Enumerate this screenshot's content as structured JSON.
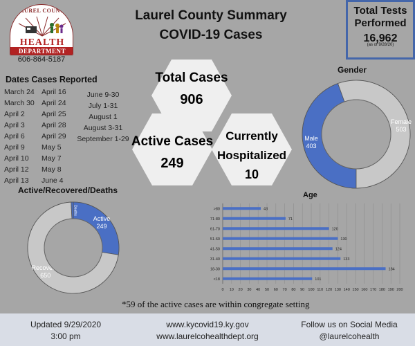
{
  "logo": {
    "arc_text": "LAUREL COUNTY",
    "line1": "HEALTH",
    "line2": "DEPARTMENT"
  },
  "phone": "606-864-5187",
  "title": {
    "line1": "Laurel County Summary",
    "line2": "COVID-19 Cases"
  },
  "total_tests": {
    "line1": "Total Tests",
    "line2": "Performed",
    "value": "16,962",
    "as_of": "(as of 9/28/20)"
  },
  "dates": {
    "title": "Dates Cases Reported",
    "col1": [
      "March 24",
      "March 30",
      "April 2",
      "April 3",
      "April 6",
      "April 9",
      "April 10",
      "April 12",
      "April 13"
    ],
    "col2": [
      "April 16",
      "April 24",
      "April 25",
      "April 28",
      "April 29",
      "May 5",
      "May 7",
      "May 8",
      "June 4"
    ],
    "col3": [
      "June 9-30",
      "July 1-31",
      "August 1",
      "August 3-31",
      "September 1-29"
    ]
  },
  "hexagons": {
    "total": {
      "line1": "Total Cases",
      "line2": "906"
    },
    "active": {
      "line1": "Active Cases",
      "line2": "249"
    },
    "hosp": {
      "line1": "Currently",
      "line2": "Hospitalized",
      "line3": "10"
    }
  },
  "colors": {
    "blue": "#4a6fc4",
    "ring_gray": "#c8c8c8",
    "hex_fill": "#efefef"
  },
  "note": "*59 of the active cases are within congregate setting",
  "footer": {
    "updated": "Updated 9/29/2020",
    "time": "3:00 pm",
    "url1": "www.kycovid19.ky.gov",
    "url2": "www.laurelcohealthdept.org",
    "social1": "Follow us on Social Media",
    "social2": "@laurelcohealth"
  },
  "chart_data": [
    {
      "type": "pie",
      "title": "Gender",
      "donut": true,
      "slices": [
        {
          "label": "Male",
          "value": 403,
          "color": "#4a6fc4"
        },
        {
          "label": "Female",
          "value": 503,
          "color": "#c8c8c8"
        }
      ]
    },
    {
      "type": "pie",
      "title": "Active/Recovered/Deaths",
      "donut": true,
      "slices": [
        {
          "label": "Active",
          "value": 249,
          "color": "#4a6fc4"
        },
        {
          "label": "Recovered",
          "display_label": "Recover...",
          "value": 650,
          "color": "#c8c8c8"
        },
        {
          "label": "Deaths",
          "display_label": "Deaths",
          "value": 7,
          "color": "#4a6fc4"
        }
      ]
    },
    {
      "type": "bar",
      "orientation": "horizontal",
      "title": "Age",
      "categories": [
        "<18",
        "18-30",
        "31-40",
        "41-50",
        "51-60",
        "61-70",
        "71-80",
        ">80"
      ],
      "values": [
        101,
        184,
        133,
        124,
        130,
        120,
        71,
        43
      ],
      "xlim": [
        0,
        200
      ],
      "xticks": [
        0,
        10,
        20,
        30,
        40,
        50,
        60,
        70,
        80,
        90,
        100,
        110,
        120,
        130,
        140,
        150,
        160,
        170,
        180,
        190,
        200
      ],
      "grid": true,
      "color": "#4a6fc4"
    }
  ]
}
